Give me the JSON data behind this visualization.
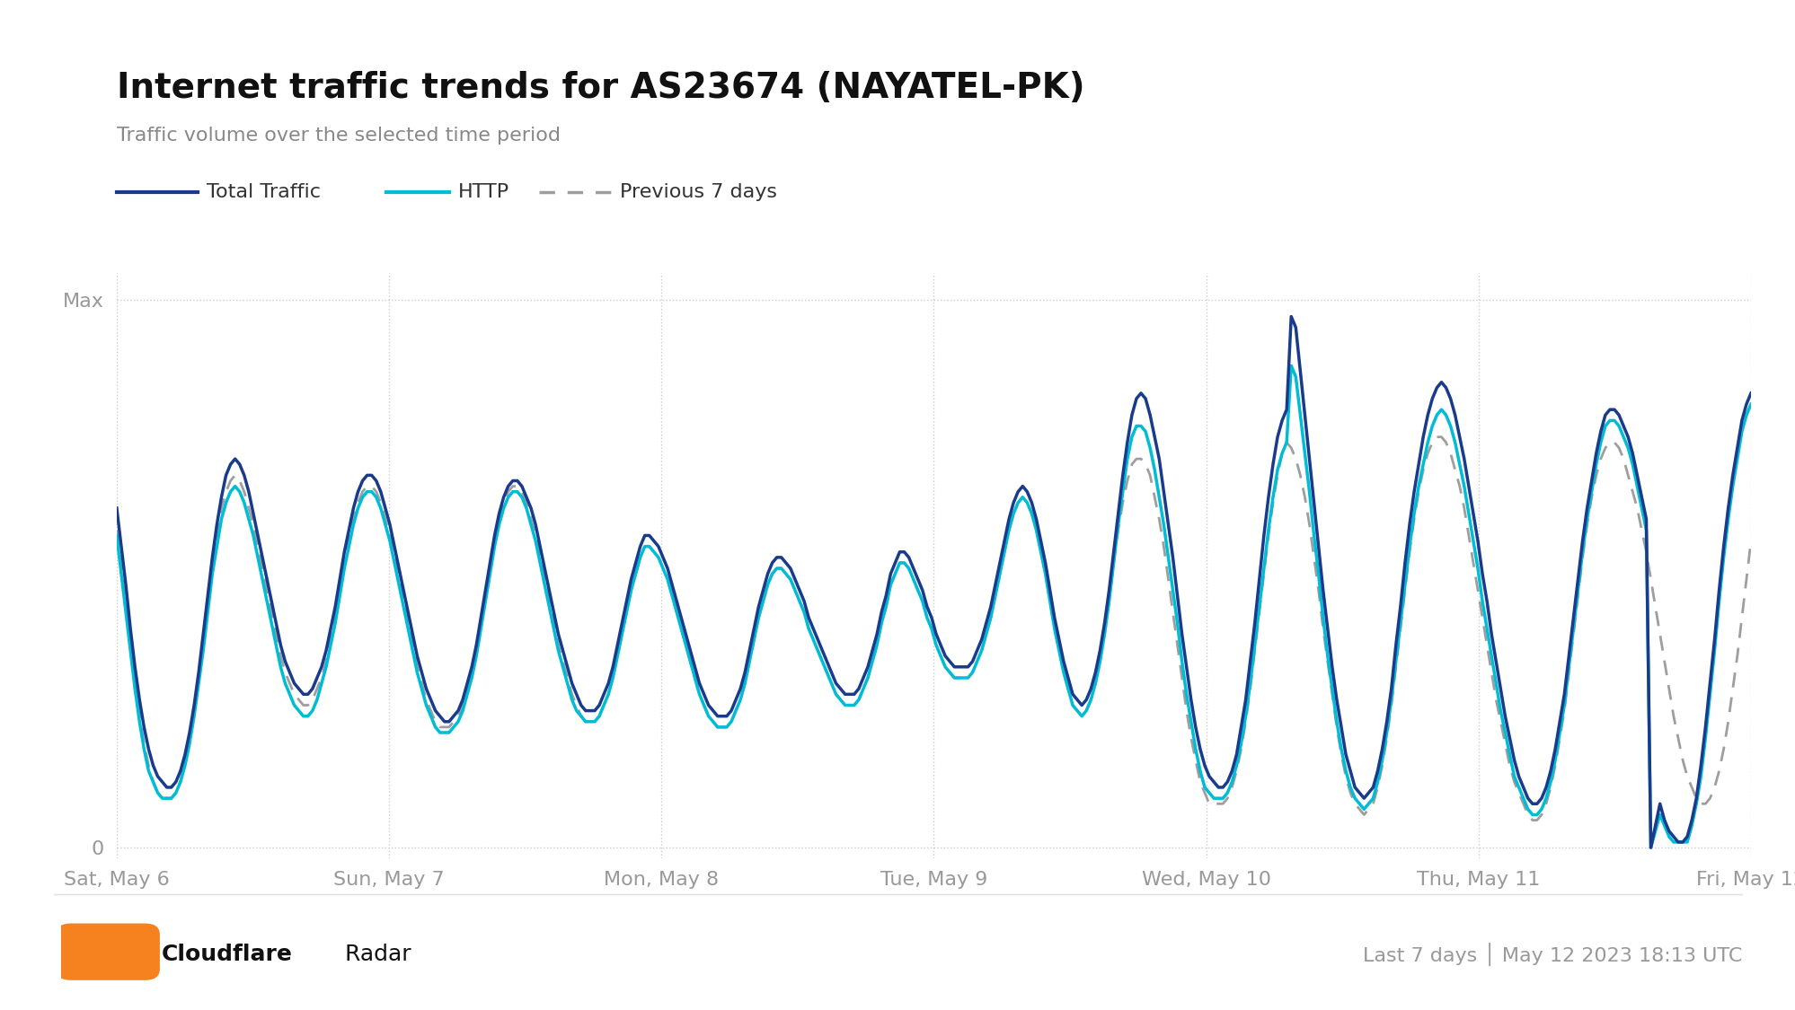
{
  "title": "Internet traffic trends for AS23674 (NAYATEL-PK)",
  "subtitle": "Traffic volume over the selected time period",
  "footer_left_bold": "Cloudflare",
  "footer_left_light": " Radar",
  "footer_right": "Last 7 days │ May 12 2023 18:13 UTC",
  "legend": [
    "Total Traffic",
    "HTTP",
    "Previous 7 days"
  ],
  "colors": {
    "total_traffic": "#1a3a8c",
    "http": "#00bcd4",
    "previous": "#9e9e9e",
    "background": "#ffffff",
    "grid": "#cccccc",
    "axis_label": "#999999",
    "title": "#111111",
    "subtitle": "#888888"
  },
  "x_ticks": [
    "Sat, May 6",
    "Sun, May 7",
    "Mon, May 8",
    "Tue, May 9",
    "Wed, May 10",
    "Thu, May 11",
    "Fri, May 12"
  ],
  "y_ticks": [
    "0",
    "Max"
  ],
  "num_points": 336,
  "total_traffic": [
    0.62,
    0.55,
    0.48,
    0.4,
    0.33,
    0.27,
    0.22,
    0.18,
    0.15,
    0.13,
    0.12,
    0.11,
    0.11,
    0.12,
    0.14,
    0.17,
    0.21,
    0.26,
    0.32,
    0.39,
    0.46,
    0.53,
    0.59,
    0.64,
    0.68,
    0.7,
    0.71,
    0.7,
    0.68,
    0.65,
    0.61,
    0.57,
    0.53,
    0.49,
    0.45,
    0.41,
    0.37,
    0.34,
    0.32,
    0.3,
    0.29,
    0.28,
    0.28,
    0.29,
    0.31,
    0.33,
    0.36,
    0.4,
    0.44,
    0.49,
    0.54,
    0.58,
    0.62,
    0.65,
    0.67,
    0.68,
    0.68,
    0.67,
    0.65,
    0.62,
    0.59,
    0.55,
    0.51,
    0.47,
    0.43,
    0.39,
    0.35,
    0.32,
    0.29,
    0.27,
    0.25,
    0.24,
    0.23,
    0.23,
    0.24,
    0.25,
    0.27,
    0.3,
    0.33,
    0.37,
    0.42,
    0.47,
    0.52,
    0.57,
    0.61,
    0.64,
    0.66,
    0.67,
    0.67,
    0.66,
    0.64,
    0.62,
    0.59,
    0.55,
    0.51,
    0.47,
    0.43,
    0.39,
    0.36,
    0.33,
    0.3,
    0.28,
    0.26,
    0.25,
    0.25,
    0.25,
    0.26,
    0.28,
    0.3,
    0.33,
    0.37,
    0.41,
    0.45,
    0.49,
    0.52,
    0.55,
    0.57,
    0.57,
    0.56,
    0.55,
    0.53,
    0.51,
    0.48,
    0.45,
    0.42,
    0.39,
    0.36,
    0.33,
    0.3,
    0.28,
    0.26,
    0.25,
    0.24,
    0.24,
    0.24,
    0.25,
    0.27,
    0.29,
    0.32,
    0.36,
    0.4,
    0.44,
    0.47,
    0.5,
    0.52,
    0.53,
    0.53,
    0.52,
    0.51,
    0.49,
    0.47,
    0.45,
    0.42,
    0.4,
    0.38,
    0.36,
    0.34,
    0.32,
    0.3,
    0.29,
    0.28,
    0.28,
    0.28,
    0.29,
    0.31,
    0.33,
    0.36,
    0.39,
    0.43,
    0.46,
    0.5,
    0.52,
    0.54,
    0.54,
    0.53,
    0.51,
    0.49,
    0.47,
    0.44,
    0.42,
    0.39,
    0.37,
    0.35,
    0.34,
    0.33,
    0.33,
    0.33,
    0.33,
    0.34,
    0.36,
    0.38,
    0.41,
    0.44,
    0.48,
    0.52,
    0.56,
    0.6,
    0.63,
    0.65,
    0.66,
    0.65,
    0.63,
    0.6,
    0.56,
    0.52,
    0.47,
    0.42,
    0.38,
    0.34,
    0.31,
    0.28,
    0.27,
    0.26,
    0.27,
    0.29,
    0.32,
    0.36,
    0.41,
    0.47,
    0.54,
    0.61,
    0.68,
    0.74,
    0.79,
    0.82,
    0.83,
    0.82,
    0.79,
    0.75,
    0.71,
    0.65,
    0.59,
    0.53,
    0.46,
    0.39,
    0.33,
    0.27,
    0.22,
    0.18,
    0.15,
    0.13,
    0.12,
    0.11,
    0.11,
    0.12,
    0.14,
    0.17,
    0.22,
    0.27,
    0.34,
    0.41,
    0.49,
    0.57,
    0.64,
    0.7,
    0.75,
    0.78,
    0.8,
    0.97,
    0.95,
    0.87,
    0.79,
    0.71,
    0.63,
    0.55,
    0.47,
    0.4,
    0.33,
    0.27,
    0.22,
    0.17,
    0.14,
    0.11,
    0.1,
    0.09,
    0.1,
    0.11,
    0.14,
    0.18,
    0.23,
    0.29,
    0.37,
    0.44,
    0.52,
    0.59,
    0.65,
    0.7,
    0.75,
    0.79,
    0.82,
    0.84,
    0.85,
    0.84,
    0.82,
    0.79,
    0.75,
    0.71,
    0.66,
    0.61,
    0.56,
    0.5,
    0.45,
    0.39,
    0.34,
    0.29,
    0.24,
    0.2,
    0.16,
    0.13,
    0.11,
    0.09,
    0.08,
    0.08,
    0.09,
    0.11,
    0.14,
    0.18,
    0.23,
    0.28,
    0.35,
    0.42,
    0.49,
    0.56,
    0.62,
    0.67,
    0.72,
    0.76,
    0.79,
    0.8,
    0.8,
    0.79,
    0.77,
    0.75,
    0.72,
    0.68,
    0.64,
    0.6,
    0.0,
    0.04,
    0.08,
    0.05,
    0.03,
    0.02,
    0.01,
    0.01,
    0.02,
    0.05,
    0.09,
    0.15,
    0.22,
    0.3,
    0.38,
    0.47,
    0.55,
    0.62,
    0.68,
    0.73,
    0.78,
    0.81,
    0.83
  ],
  "http_traffic": [
    0.57,
    0.5,
    0.43,
    0.36,
    0.29,
    0.23,
    0.18,
    0.14,
    0.12,
    0.1,
    0.09,
    0.09,
    0.09,
    0.1,
    0.12,
    0.15,
    0.19,
    0.24,
    0.3,
    0.36,
    0.43,
    0.5,
    0.55,
    0.6,
    0.63,
    0.65,
    0.66,
    0.65,
    0.63,
    0.6,
    0.57,
    0.53,
    0.49,
    0.45,
    0.41,
    0.37,
    0.33,
    0.3,
    0.28,
    0.26,
    0.25,
    0.24,
    0.24,
    0.25,
    0.27,
    0.3,
    0.33,
    0.37,
    0.41,
    0.46,
    0.51,
    0.55,
    0.59,
    0.62,
    0.64,
    0.65,
    0.65,
    0.64,
    0.62,
    0.59,
    0.56,
    0.52,
    0.48,
    0.44,
    0.4,
    0.36,
    0.32,
    0.29,
    0.26,
    0.24,
    0.22,
    0.21,
    0.21,
    0.21,
    0.22,
    0.23,
    0.25,
    0.28,
    0.31,
    0.35,
    0.4,
    0.45,
    0.5,
    0.55,
    0.59,
    0.62,
    0.64,
    0.65,
    0.65,
    0.64,
    0.62,
    0.59,
    0.56,
    0.52,
    0.48,
    0.44,
    0.4,
    0.36,
    0.33,
    0.3,
    0.27,
    0.25,
    0.24,
    0.23,
    0.23,
    0.23,
    0.24,
    0.26,
    0.28,
    0.31,
    0.35,
    0.39,
    0.43,
    0.47,
    0.5,
    0.53,
    0.55,
    0.55,
    0.54,
    0.53,
    0.51,
    0.49,
    0.46,
    0.43,
    0.4,
    0.37,
    0.34,
    0.31,
    0.28,
    0.26,
    0.24,
    0.23,
    0.22,
    0.22,
    0.22,
    0.23,
    0.25,
    0.27,
    0.3,
    0.34,
    0.38,
    0.42,
    0.45,
    0.48,
    0.5,
    0.51,
    0.51,
    0.5,
    0.49,
    0.47,
    0.45,
    0.43,
    0.4,
    0.38,
    0.36,
    0.34,
    0.32,
    0.3,
    0.28,
    0.27,
    0.26,
    0.26,
    0.26,
    0.27,
    0.29,
    0.31,
    0.34,
    0.37,
    0.41,
    0.44,
    0.48,
    0.5,
    0.52,
    0.52,
    0.51,
    0.49,
    0.47,
    0.45,
    0.42,
    0.4,
    0.37,
    0.35,
    0.33,
    0.32,
    0.31,
    0.31,
    0.31,
    0.31,
    0.32,
    0.34,
    0.36,
    0.39,
    0.42,
    0.46,
    0.5,
    0.54,
    0.58,
    0.61,
    0.63,
    0.64,
    0.63,
    0.61,
    0.58,
    0.54,
    0.5,
    0.45,
    0.4,
    0.36,
    0.32,
    0.29,
    0.26,
    0.25,
    0.24,
    0.25,
    0.27,
    0.3,
    0.34,
    0.39,
    0.45,
    0.52,
    0.59,
    0.65,
    0.71,
    0.75,
    0.77,
    0.77,
    0.76,
    0.73,
    0.69,
    0.64,
    0.59,
    0.53,
    0.47,
    0.41,
    0.34,
    0.28,
    0.23,
    0.18,
    0.14,
    0.11,
    0.1,
    0.09,
    0.09,
    0.09,
    0.1,
    0.12,
    0.15,
    0.19,
    0.24,
    0.3,
    0.37,
    0.44,
    0.51,
    0.58,
    0.64,
    0.69,
    0.72,
    0.74,
    0.88,
    0.86,
    0.79,
    0.72,
    0.65,
    0.57,
    0.5,
    0.42,
    0.35,
    0.29,
    0.23,
    0.18,
    0.14,
    0.11,
    0.09,
    0.08,
    0.07,
    0.08,
    0.09,
    0.12,
    0.16,
    0.21,
    0.27,
    0.34,
    0.41,
    0.48,
    0.55,
    0.61,
    0.66,
    0.7,
    0.74,
    0.77,
    0.79,
    0.8,
    0.79,
    0.77,
    0.74,
    0.7,
    0.66,
    0.61,
    0.56,
    0.51,
    0.45,
    0.4,
    0.35,
    0.3,
    0.25,
    0.21,
    0.17,
    0.13,
    0.11,
    0.09,
    0.07,
    0.06,
    0.06,
    0.07,
    0.09,
    0.12,
    0.16,
    0.21,
    0.26,
    0.33,
    0.4,
    0.47,
    0.54,
    0.6,
    0.65,
    0.7,
    0.74,
    0.77,
    0.78,
    0.78,
    0.77,
    0.75,
    0.73,
    0.7,
    0.66,
    0.62,
    0.58,
    0.0,
    0.03,
    0.06,
    0.04,
    0.02,
    0.01,
    0.01,
    0.01,
    0.01,
    0.04,
    0.08,
    0.13,
    0.2,
    0.28,
    0.36,
    0.45,
    0.53,
    0.6,
    0.66,
    0.71,
    0.76,
    0.79,
    0.81
  ],
  "prev_traffic": [
    0.58,
    0.51,
    0.44,
    0.37,
    0.3,
    0.24,
    0.19,
    0.15,
    0.12,
    0.1,
    0.09,
    0.09,
    0.09,
    0.1,
    0.12,
    0.16,
    0.2,
    0.25,
    0.31,
    0.38,
    0.45,
    0.52,
    0.57,
    0.62,
    0.65,
    0.67,
    0.68,
    0.67,
    0.65,
    0.62,
    0.59,
    0.55,
    0.51,
    0.47,
    0.43,
    0.39,
    0.35,
    0.32,
    0.3,
    0.28,
    0.27,
    0.26,
    0.26,
    0.27,
    0.29,
    0.31,
    0.34,
    0.38,
    0.42,
    0.47,
    0.52,
    0.56,
    0.6,
    0.63,
    0.65,
    0.66,
    0.66,
    0.65,
    0.63,
    0.6,
    0.57,
    0.53,
    0.49,
    0.45,
    0.41,
    0.37,
    0.33,
    0.3,
    0.27,
    0.25,
    0.23,
    0.22,
    0.22,
    0.22,
    0.23,
    0.24,
    0.26,
    0.29,
    0.32,
    0.36,
    0.41,
    0.46,
    0.51,
    0.56,
    0.6,
    0.63,
    0.65,
    0.66,
    0.66,
    0.65,
    0.63,
    0.6,
    0.57,
    0.53,
    0.49,
    0.45,
    0.41,
    0.37,
    0.34,
    0.31,
    0.28,
    0.26,
    0.24,
    0.23,
    0.23,
    0.23,
    0.24,
    0.26,
    0.28,
    0.31,
    0.35,
    0.39,
    0.43,
    0.47,
    0.5,
    0.53,
    0.55,
    0.55,
    0.54,
    0.53,
    0.51,
    0.49,
    0.46,
    0.43,
    0.4,
    0.37,
    0.34,
    0.31,
    0.28,
    0.26,
    0.24,
    0.23,
    0.22,
    0.22,
    0.22,
    0.23,
    0.25,
    0.27,
    0.3,
    0.34,
    0.38,
    0.42,
    0.45,
    0.48,
    0.5,
    0.51,
    0.51,
    0.5,
    0.49,
    0.47,
    0.45,
    0.43,
    0.4,
    0.38,
    0.36,
    0.34,
    0.32,
    0.3,
    0.28,
    0.27,
    0.26,
    0.26,
    0.26,
    0.27,
    0.29,
    0.31,
    0.34,
    0.37,
    0.41,
    0.44,
    0.48,
    0.5,
    0.52,
    0.52,
    0.51,
    0.49,
    0.47,
    0.45,
    0.42,
    0.4,
    0.37,
    0.35,
    0.33,
    0.32,
    0.31,
    0.31,
    0.31,
    0.31,
    0.32,
    0.34,
    0.36,
    0.39,
    0.42,
    0.46,
    0.5,
    0.54,
    0.58,
    0.61,
    0.63,
    0.64,
    0.63,
    0.61,
    0.58,
    0.54,
    0.5,
    0.45,
    0.4,
    0.36,
    0.32,
    0.29,
    0.26,
    0.25,
    0.24,
    0.25,
    0.27,
    0.3,
    0.34,
    0.39,
    0.45,
    0.52,
    0.58,
    0.63,
    0.67,
    0.7,
    0.71,
    0.71,
    0.7,
    0.68,
    0.64,
    0.6,
    0.55,
    0.49,
    0.43,
    0.37,
    0.31,
    0.25,
    0.2,
    0.16,
    0.12,
    0.1,
    0.08,
    0.08,
    0.08,
    0.08,
    0.09,
    0.11,
    0.14,
    0.18,
    0.23,
    0.29,
    0.36,
    0.43,
    0.5,
    0.57,
    0.63,
    0.68,
    0.72,
    0.74,
    0.73,
    0.71,
    0.68,
    0.64,
    0.59,
    0.53,
    0.47,
    0.4,
    0.34,
    0.28,
    0.22,
    0.17,
    0.13,
    0.1,
    0.08,
    0.07,
    0.06,
    0.07,
    0.08,
    0.11,
    0.15,
    0.2,
    0.26,
    0.33,
    0.4,
    0.47,
    0.54,
    0.6,
    0.65,
    0.69,
    0.72,
    0.74,
    0.75,
    0.75,
    0.74,
    0.72,
    0.69,
    0.66,
    0.62,
    0.57,
    0.52,
    0.47,
    0.42,
    0.37,
    0.32,
    0.27,
    0.23,
    0.19,
    0.15,
    0.12,
    0.1,
    0.08,
    0.06,
    0.05,
    0.05,
    0.06,
    0.08,
    0.11,
    0.15,
    0.2,
    0.25,
    0.32,
    0.39,
    0.46,
    0.53,
    0.59,
    0.64,
    0.68,
    0.71,
    0.73,
    0.74,
    0.74,
    0.73,
    0.71,
    0.68,
    0.65,
    0.62,
    0.58,
    0.54,
    0.49,
    0.44,
    0.39,
    0.34,
    0.29,
    0.24,
    0.2,
    0.16,
    0.13,
    0.11,
    0.09,
    0.08,
    0.08,
    0.09,
    0.11,
    0.14,
    0.18,
    0.23,
    0.29,
    0.35,
    0.42,
    0.49,
    0.56
  ]
}
